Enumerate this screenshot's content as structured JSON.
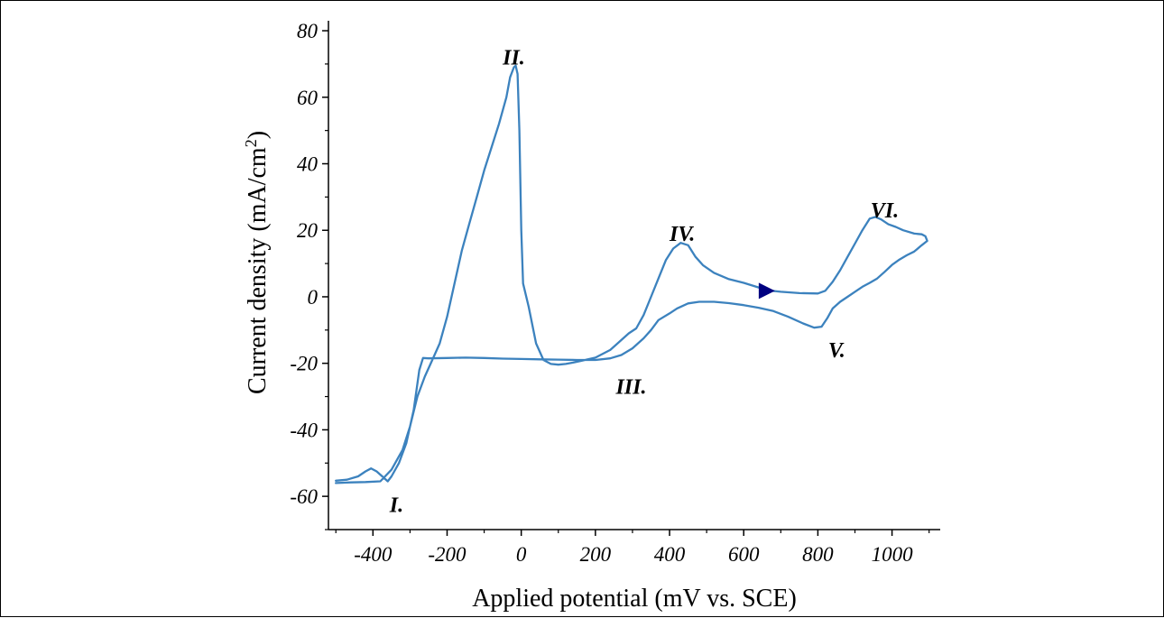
{
  "chart_data": {
    "type": "line",
    "title": "",
    "xlabel": "Applied potential (mV vs. SCE)",
    "ylabel_main": "Current density (mA/cm",
    "ylabel_sup": "2",
    "ylabel_close": ")",
    "xlim": [
      -520,
      1130
    ],
    "ylim": [
      -70,
      83
    ],
    "x_ticks": [
      -400,
      -200,
      0,
      200,
      400,
      600,
      800,
      1000
    ],
    "x_tick_labels": [
      "-400",
      "-200",
      "0",
      "200",
      "400",
      "600",
      "800",
      "1000"
    ],
    "y_ticks": [
      -60,
      -40,
      -20,
      0,
      20,
      40,
      60,
      80
    ],
    "y_tick_labels": [
      "-60",
      "-40",
      "-20",
      "0",
      "20",
      "40",
      "60",
      "80"
    ],
    "grid": false,
    "legend": false,
    "colors": {
      "curve": "#3c82be",
      "arrow": "#000080",
      "axis": "#000000"
    },
    "series": [
      {
        "points": [
          [
            -500,
            -56
          ],
          [
            -460,
            -55.8
          ],
          [
            -420,
            -55.7
          ],
          [
            -380,
            -55.5
          ],
          [
            -350,
            -52
          ],
          [
            -320,
            -46
          ],
          [
            -300,
            -39
          ],
          [
            -280,
            -30
          ],
          [
            -260,
            -24
          ],
          [
            -240,
            -19
          ],
          [
            -220,
            -14
          ],
          [
            -200,
            -6
          ],
          [
            -180,
            4
          ],
          [
            -160,
            14
          ],
          [
            -140,
            22
          ],
          [
            -120,
            30
          ],
          [
            -100,
            38
          ],
          [
            -80,
            45
          ],
          [
            -60,
            52
          ],
          [
            -40,
            60
          ],
          [
            -30,
            66
          ],
          [
            -20,
            69
          ],
          [
            -15,
            69.5
          ],
          [
            -10,
            67
          ],
          [
            -5,
            50
          ],
          [
            0,
            20
          ],
          [
            5,
            4
          ],
          [
            20,
            -3
          ],
          [
            40,
            -14
          ],
          [
            60,
            -19
          ],
          [
            80,
            -20.2
          ],
          [
            100,
            -20.4
          ],
          [
            120,
            -20.2
          ],
          [
            140,
            -19.8
          ],
          [
            160,
            -19.3
          ],
          [
            200,
            -18.3
          ],
          [
            240,
            -16
          ],
          [
            270,
            -13
          ],
          [
            290,
            -11
          ],
          [
            310,
            -9.5
          ],
          [
            330,
            -5.5
          ],
          [
            350,
            0
          ],
          [
            370,
            5.5
          ],
          [
            390,
            11
          ],
          [
            410,
            14.5
          ],
          [
            430,
            16.2
          ],
          [
            450,
            15.5
          ],
          [
            470,
            12
          ],
          [
            490,
            9.5
          ],
          [
            520,
            7.2
          ],
          [
            560,
            5.3
          ],
          [
            600,
            4.2
          ],
          [
            640,
            2.8
          ],
          [
            660,
            2
          ],
          [
            700,
            1.5
          ],
          [
            750,
            1.1
          ],
          [
            800,
            1.0
          ],
          [
            820,
            1.8
          ],
          [
            840,
            4.5
          ],
          [
            860,
            8
          ],
          [
            880,
            12
          ],
          [
            900,
            16
          ],
          [
            920,
            20
          ],
          [
            940,
            23.5
          ],
          [
            955,
            24
          ],
          [
            970,
            23.3
          ],
          [
            990,
            21.8
          ],
          [
            1010,
            21
          ],
          [
            1030,
            20
          ],
          [
            1060,
            19
          ],
          [
            1080,
            18.8
          ],
          [
            1090,
            18.2
          ],
          [
            1095,
            16.8
          ],
          [
            1080,
            15.5
          ],
          [
            1060,
            13.6
          ],
          [
            1040,
            12.5
          ],
          [
            1020,
            11.2
          ],
          [
            1000,
            9.6
          ],
          [
            980,
            7.5
          ],
          [
            960,
            5.5
          ],
          [
            940,
            4.2
          ],
          [
            920,
            3
          ],
          [
            900,
            1.5
          ],
          [
            880,
            0
          ],
          [
            860,
            -1.5
          ],
          [
            840,
            -3.5
          ],
          [
            825,
            -6.5
          ],
          [
            810,
            -9
          ],
          [
            790,
            -9.3
          ],
          [
            760,
            -8
          ],
          [
            720,
            -6
          ],
          [
            680,
            -4.3
          ],
          [
            640,
            -3.3
          ],
          [
            600,
            -2.5
          ],
          [
            560,
            -1.9
          ],
          [
            520,
            -1.5
          ],
          [
            480,
            -1.5
          ],
          [
            450,
            -2
          ],
          [
            420,
            -3.5
          ],
          [
            400,
            -5
          ],
          [
            370,
            -7
          ],
          [
            350,
            -10
          ],
          [
            330,
            -12.5
          ],
          [
            300,
            -15.5
          ],
          [
            270,
            -17.5
          ],
          [
            240,
            -18.5
          ],
          [
            200,
            -19
          ],
          [
            150,
            -19
          ],
          [
            100,
            -18.9
          ],
          [
            50,
            -18.8
          ],
          [
            0,
            -18.7
          ],
          [
            -50,
            -18.6
          ],
          [
            -100,
            -18.4
          ],
          [
            -150,
            -18.3
          ],
          [
            -200,
            -18.4
          ],
          [
            -250,
            -18.5
          ],
          [
            -265,
            -18.4
          ],
          [
            -275,
            -22
          ],
          [
            -290,
            -34
          ],
          [
            -310,
            -44
          ],
          [
            -330,
            -50
          ],
          [
            -350,
            -54
          ],
          [
            -360,
            -55.5
          ],
          [
            -375,
            -54
          ],
          [
            -390,
            -52.5
          ],
          [
            -405,
            -51.6
          ],
          [
            -420,
            -52.5
          ],
          [
            -440,
            -54
          ],
          [
            -470,
            -55
          ],
          [
            -500,
            -55.3
          ]
        ]
      }
    ],
    "annotations": [
      {
        "text": "I.",
        "x": -355,
        "y": -62.5
      },
      {
        "text": "II.",
        "x": -50,
        "y": 72
      },
      {
        "text": "III.",
        "x": 255,
        "y": -27
      },
      {
        "text": "IV.",
        "x": 400,
        "y": 19
      },
      {
        "text": "V.",
        "x": 828,
        "y": -16
      },
      {
        "text": "VI.",
        "x": 942,
        "y": 26
      }
    ],
    "direction_marker": {
      "x": 660,
      "y": 1.8
    }
  }
}
